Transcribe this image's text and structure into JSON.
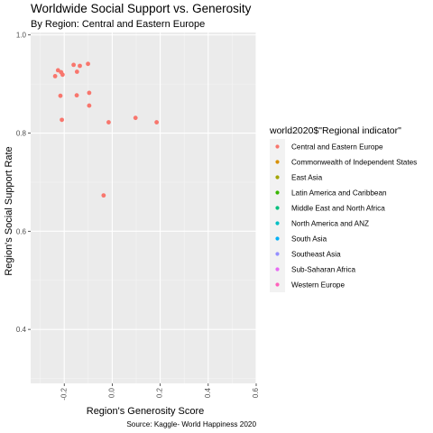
{
  "chart_data": {
    "type": "scatter",
    "title": "Worldwide Social Support vs. Generosity",
    "subtitle": "By Region: Central and Eastern Europe",
    "xlabel": "Region's Generosity Score",
    "ylabel": "Region's Social Support Rate",
    "caption": "Source: Kaggle- World Happiness 2020",
    "xlim": [
      -0.34,
      0.6
    ],
    "ylim": [
      0.29,
      1.005
    ],
    "x_ticks": [
      -0.2,
      0.0,
      0.2,
      0.4,
      0.6
    ],
    "x_tick_labels": [
      "-0.2",
      "0.0",
      "0.2",
      "0.4",
      "0.6"
    ],
    "y_ticks": [
      0.4,
      0.6,
      0.8,
      1.0
    ],
    "y_tick_labels": [
      "0.4",
      "0.6",
      "0.8",
      "1.0"
    ],
    "grid": true,
    "legend": {
      "title": "world2020$\"Regional indicator\"",
      "position": "right",
      "entries": [
        {
          "label": "Central and Eastern Europe",
          "color": "#F8766D"
        },
        {
          "label": "Commonwealth of Independent States",
          "color": "#D89000"
        },
        {
          "label": "East Asia",
          "color": "#A3A500"
        },
        {
          "label": "Latin America and Caribbean",
          "color": "#39B600"
        },
        {
          "label": "Middle East and North Africa",
          "color": "#00BF7D"
        },
        {
          "label": "North America and ANZ",
          "color": "#00BFC4"
        },
        {
          "label": "South Asia",
          "color": "#00B0F6"
        },
        {
          "label": "Southeast Asia",
          "color": "#9590FF"
        },
        {
          "label": "Sub-Saharan Africa",
          "color": "#E76BF3"
        },
        {
          "label": "Western Europe",
          "color": "#FF62BC"
        }
      ]
    },
    "series": [
      {
        "color": "#F8766D",
        "points": [
          {
            "x": -0.238,
            "y": 0.916
          },
          {
            "x": -0.226,
            "y": 0.928
          },
          {
            "x": -0.213,
            "y": 0.924
          },
          {
            "x": -0.207,
            "y": 0.919
          },
          {
            "x": -0.216,
            "y": 0.876
          },
          {
            "x": -0.21,
            "y": 0.827
          },
          {
            "x": -0.161,
            "y": 0.939
          },
          {
            "x": -0.135,
            "y": 0.937
          },
          {
            "x": -0.101,
            "y": 0.941
          },
          {
            "x": -0.147,
            "y": 0.925
          },
          {
            "x": -0.148,
            "y": 0.877
          },
          {
            "x": -0.096,
            "y": 0.882
          },
          {
            "x": -0.096,
            "y": 0.856
          },
          {
            "x": -0.036,
            "y": 0.673
          },
          {
            "x": -0.015,
            "y": 0.822
          },
          {
            "x": 0.097,
            "y": 0.831
          },
          {
            "x": 0.185,
            "y": 0.822
          }
        ]
      }
    ]
  }
}
